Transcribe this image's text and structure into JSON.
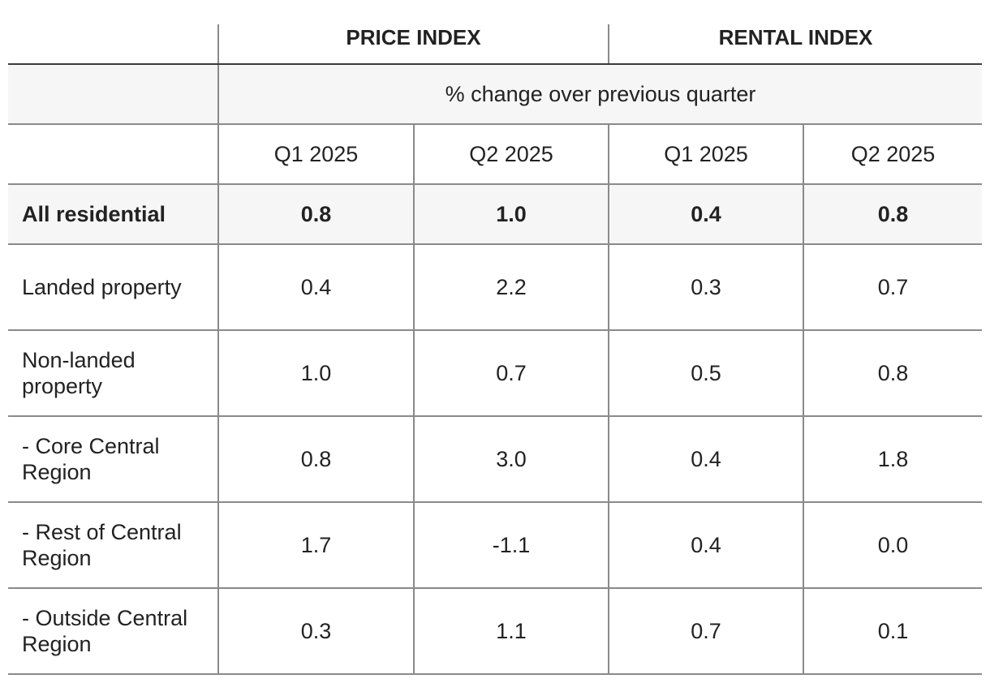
{
  "header": {
    "groups": [
      "PRICE INDEX",
      "RENTAL INDEX"
    ],
    "subtitle": "% change over previous quarter",
    "quarters": [
      "Q1 2025",
      "Q2 2025",
      "Q1 2025",
      "Q2 2025"
    ]
  },
  "rows": [
    {
      "label": "All residential",
      "values": [
        "0.8",
        "1.0",
        "0.4",
        "0.8"
      ]
    },
    {
      "label": "Landed property",
      "values": [
        "0.4",
        "2.2",
        "0.3",
        "0.7"
      ]
    },
    {
      "label": "Non-landed property",
      "values": [
        "1.0",
        "0.7",
        "0.5",
        "0.8"
      ]
    },
    {
      "label": "- Core Central Region",
      "values": [
        "0.8",
        "3.0",
        "0.4",
        "1.8"
      ]
    },
    {
      "label": "- Rest of Central Region",
      "values": [
        "1.7",
        "-1.1",
        "0.4",
        "0.0"
      ]
    },
    {
      "label": "- Outside Central Region",
      "values": [
        "0.3",
        "1.1",
        "0.7",
        "0.1"
      ]
    }
  ],
  "colors": {
    "shaded_row_bg": "#f6f6f6",
    "border": "#8a8a8a",
    "header_rule": "#3a3a3a",
    "text": "#222222"
  }
}
